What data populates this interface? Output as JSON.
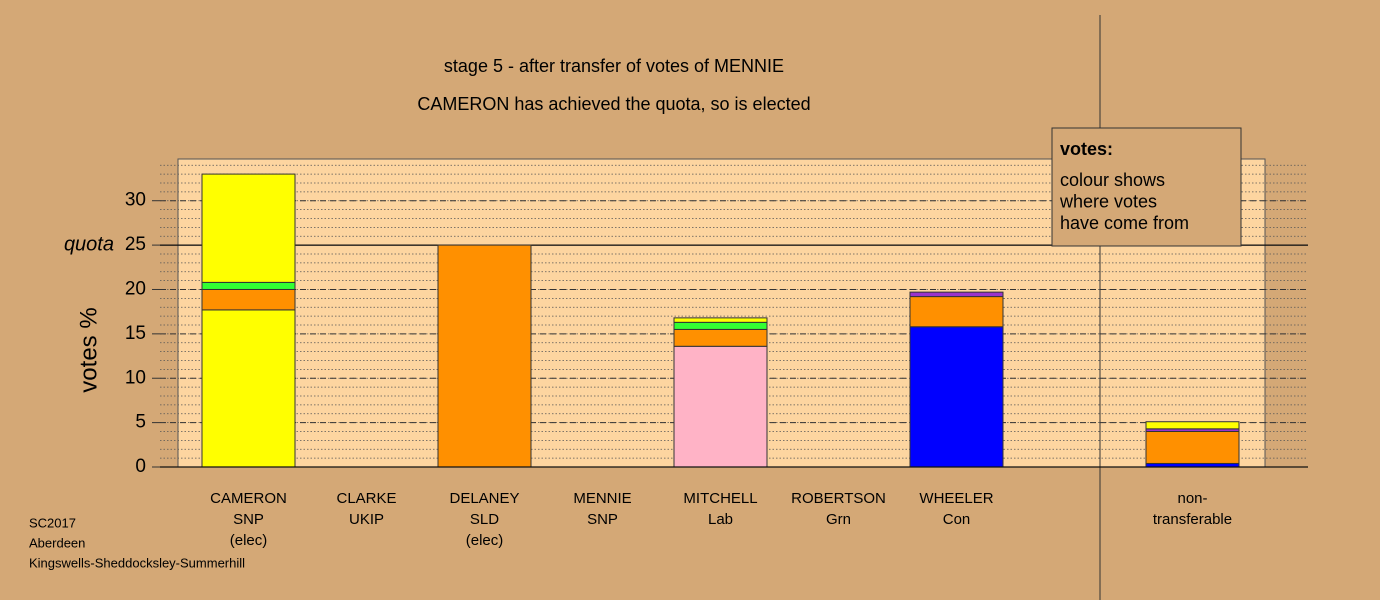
{
  "chart_data": {
    "type": "stacked-bar",
    "title": "stage 5 - after transfer of votes of MENNIE",
    "subtitle": "CAMERON has achieved the quota, so is elected",
    "y_label": "votes %",
    "categories": [
      [
        "CAMERON",
        "SNP",
        "(elec)"
      ],
      [
        "CLARKE",
        "UKIP"
      ],
      [
        "DELANEY",
        "SLD",
        "(elec)"
      ],
      [
        "MENNIE",
        "SNP"
      ],
      [
        "MITCHELL",
        "Lab"
      ],
      [
        "ROBERTSON",
        "Grn"
      ],
      [
        "WHEELER",
        "Con"
      ],
      [
        "non-",
        "transferable"
      ]
    ],
    "series": [
      {
        "color": "#ffff00",
        "values": [
          17.7,
          0,
          0,
          0,
          0,
          0,
          0,
          0
        ]
      },
      {
        "color": "#ffb3c6",
        "values": [
          0,
          0,
          0,
          0,
          13.6,
          0,
          0,
          0
        ]
      },
      {
        "color": "#0000ff",
        "values": [
          0,
          0,
          0,
          0,
          0,
          0,
          15.8,
          0.4
        ]
      },
      {
        "color": "#ff9000",
        "values": [
          2.3,
          0,
          25,
          0,
          1.9,
          0,
          3.4,
          3.6
        ]
      },
      {
        "color": "#9933cc",
        "values": [
          0,
          0,
          0,
          0,
          0,
          0,
          0.5,
          0.3
        ]
      },
      {
        "color": "#33ff33",
        "values": [
          0.8,
          0,
          0,
          0,
          0.8,
          0,
          0,
          0
        ]
      },
      {
        "color": "#ffff00",
        "values": [
          12.2,
          0,
          0,
          0,
          0.5,
          0,
          0,
          0.8
        ]
      }
    ],
    "ylim": [
      0,
      34.7
    ],
    "yticks": [
      0,
      5,
      10,
      15,
      20,
      25,
      30
    ],
    "minor_grid_step": 1,
    "quota": {
      "label": "quota",
      "value": 25
    },
    "legend": {
      "title": "votes:",
      "lines": [
        "colour shows",
        "where votes",
        "have come from"
      ]
    },
    "footer": [
      "SC2017",
      "Aberdeen",
      "Kingswells-Sheddocksley-Summerhill"
    ]
  }
}
